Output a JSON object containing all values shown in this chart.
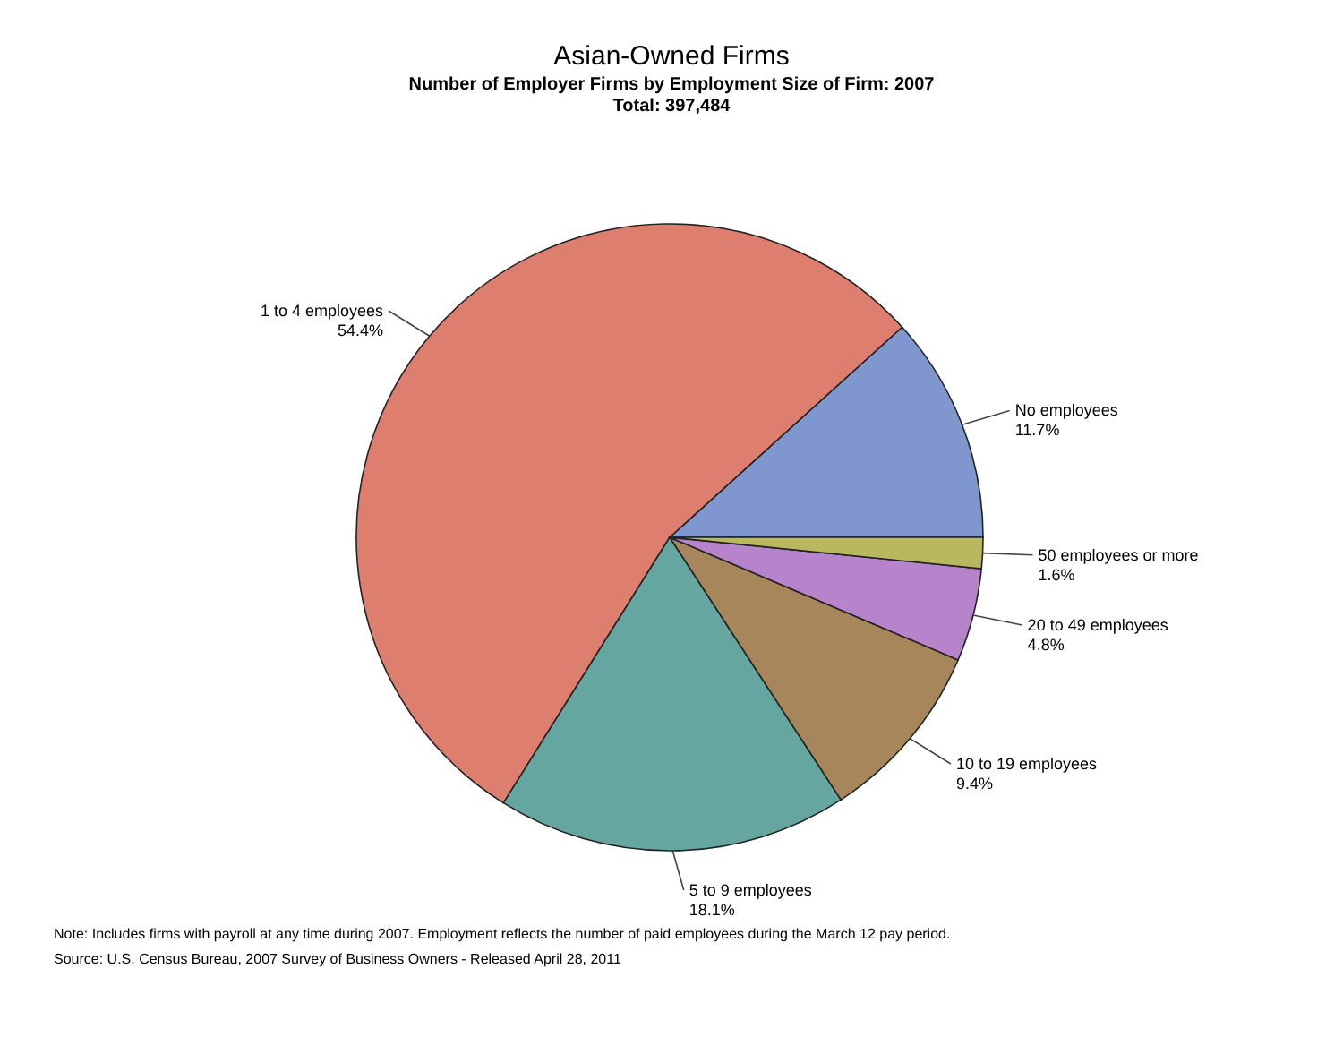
{
  "chart_data": {
    "type": "pie",
    "title": "Asian-Owned Firms",
    "subtitle": "Number of Employer Firms by Employment Size of Firm: 2007\nTotal: 397,484",
    "categories": [
      "No employees",
      "1 to 4 employees",
      "5 to 9 employees",
      "10 to 19 employees",
      "20 to 49 employees",
      "50 employees or more"
    ],
    "values": [
      11.7,
      54.4,
      18.1,
      9.4,
      4.8,
      1.6
    ],
    "value_labels": [
      "11.7%",
      "54.4%",
      "18.1%",
      "9.4%",
      "4.8%",
      "1.6%"
    ],
    "colors": [
      "#7f96cf",
      "#dd7e6e",
      "#66a6a0",
      "#a8865c",
      "#b784cc",
      "#b9b85f"
    ],
    "annotations": [
      "Note: Includes firms with payroll at any time during 2007.  Employment reflects the number of paid employees during the March 12 pay period.",
      "Source: U.S. Census Bureau, 2007 Survey of Business Owners - Released April 28, 2011"
    ]
  }
}
